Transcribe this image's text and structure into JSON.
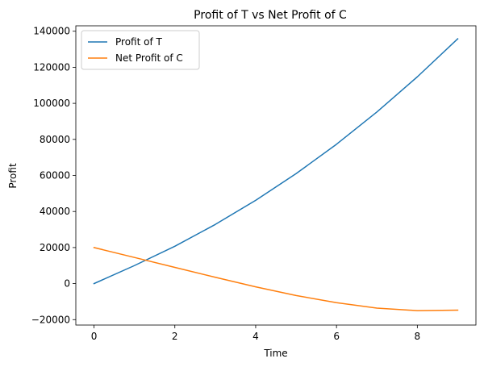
{
  "chart_data": {
    "type": "line",
    "title": "Profit of T vs Net Profit of C",
    "xlabel": "Time",
    "ylabel": "Profit",
    "xlim": [
      -0.45,
      9.45
    ],
    "ylim": [
      -23000,
      143000
    ],
    "xticks": [
      0,
      2,
      4,
      6,
      8
    ],
    "yticks": [
      -20000,
      0,
      20000,
      40000,
      60000,
      80000,
      100000,
      120000,
      140000
    ],
    "xtick_labels": [
      "0",
      "2",
      "4",
      "6",
      "8"
    ],
    "ytick_labels": [
      "−20000",
      "0",
      "20000",
      "40000",
      "60000",
      "80000",
      "100000",
      "120000",
      "140000"
    ],
    "grid": false,
    "legend_position": "upper-left",
    "x": [
      0,
      1,
      2,
      3,
      4,
      5,
      6,
      7,
      8,
      9
    ],
    "series": [
      {
        "name": "Profit of T",
        "color": "#1f77b4",
        "values": [
          0,
          10000,
          20700,
          32800,
          46200,
          61000,
          77300,
          95200,
          114700,
          135800
        ]
      },
      {
        "name": "Net Profit of C",
        "color": "#ff7f0e",
        "values": [
          20000,
          14500,
          9000,
          3500,
          -1800,
          -6600,
          -10600,
          -13600,
          -15000,
          -14700
        ]
      }
    ]
  }
}
